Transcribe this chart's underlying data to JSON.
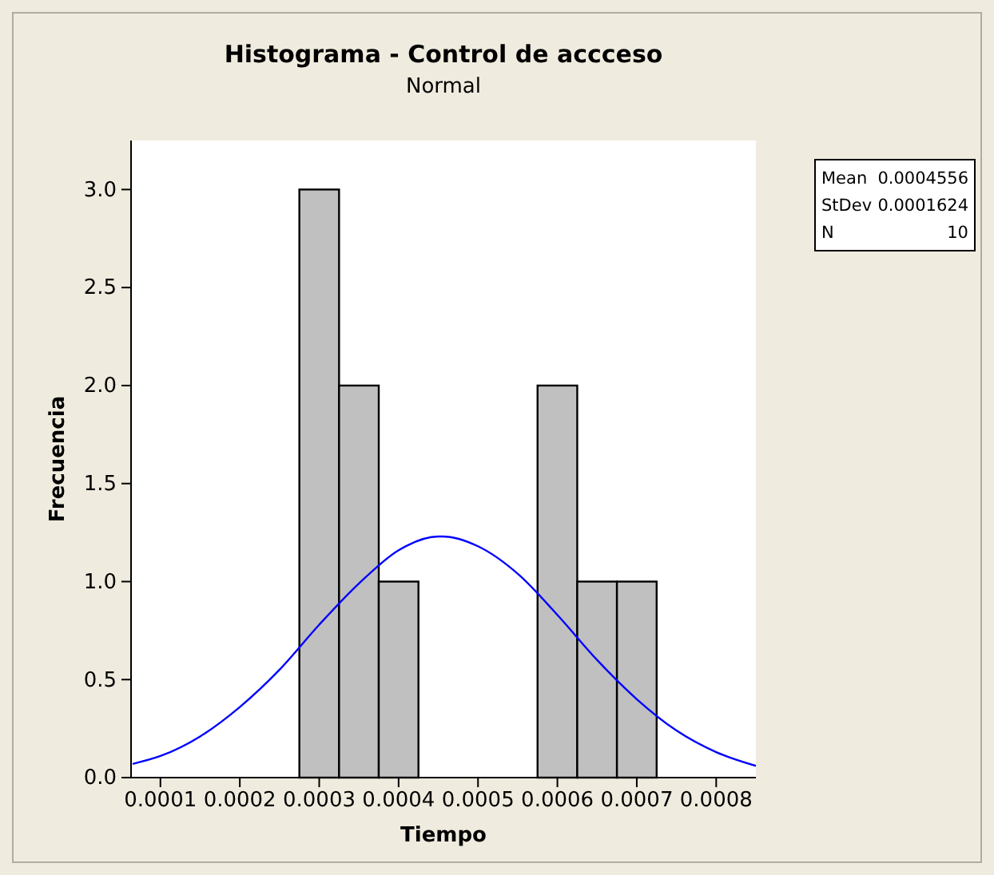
{
  "chart_data": {
    "type": "histogram",
    "title": "Histograma - Control de accceso",
    "subtitle": "Normal",
    "xlabel": "Tiempo",
    "ylabel": "Frecuencia",
    "bins": [
      0.000275,
      0.000325,
      0.000375,
      0.000425,
      0.000475,
      0.000525,
      0.000575,
      0.000625,
      0.000675,
      0.000725
    ],
    "values": [
      3,
      2,
      1,
      0,
      0,
      0,
      2,
      1,
      1
    ],
    "color": "#c0c0c0",
    "series": [
      {
        "type": "line",
        "color": "#0000ff",
        "x": [
          6.5e-05,
          0.0001,
          0.00015,
          0.0002,
          0.00025,
          0.0003,
          0.00035,
          0.0004,
          0.00045,
          0.0004556,
          0.0005,
          0.00055,
          0.0006,
          0.00065,
          0.0007,
          0.00075,
          0.0008,
          0.00085
        ],
        "values": [
          0.07,
          0.11,
          0.21,
          0.36,
          0.55,
          0.78,
          0.99,
          1.16,
          1.23,
          1.23,
          1.18,
          1.04,
          0.83,
          0.6,
          0.4,
          0.24,
          0.13,
          0.06
        ]
      }
    ],
    "xlim": [
      6.3e-05,
      0.00085
    ],
    "xticks": [
      0.0001,
      0.0002,
      0.0003,
      0.0004,
      0.0005,
      0.0006,
      0.0007,
      0.0008
    ],
    "ylim": [
      0,
      3.25
    ],
    "yticks": [
      {
        "value": 0,
        "label": "0.0"
      },
      {
        "value": 0.5,
        "label": "0.5"
      },
      {
        "value": 1,
        "label": "1.0"
      },
      {
        "value": 1.5,
        "label": "1.5"
      },
      {
        "value": 2,
        "label": "2.0"
      },
      {
        "value": 2.5,
        "label": "2.5"
      },
      {
        "value": 3,
        "label": "3.0"
      }
    ],
    "annotations": [
      [
        {
          "text": "Mean"
        },
        {
          "text": "0.0004556"
        }
      ],
      [
        {
          "text": "StDev"
        },
        {
          "text": "0.0001624"
        }
      ],
      [
        {
          "text": "N"
        },
        {
          "text": "10"
        }
      ]
    ],
    "grid": false
  }
}
